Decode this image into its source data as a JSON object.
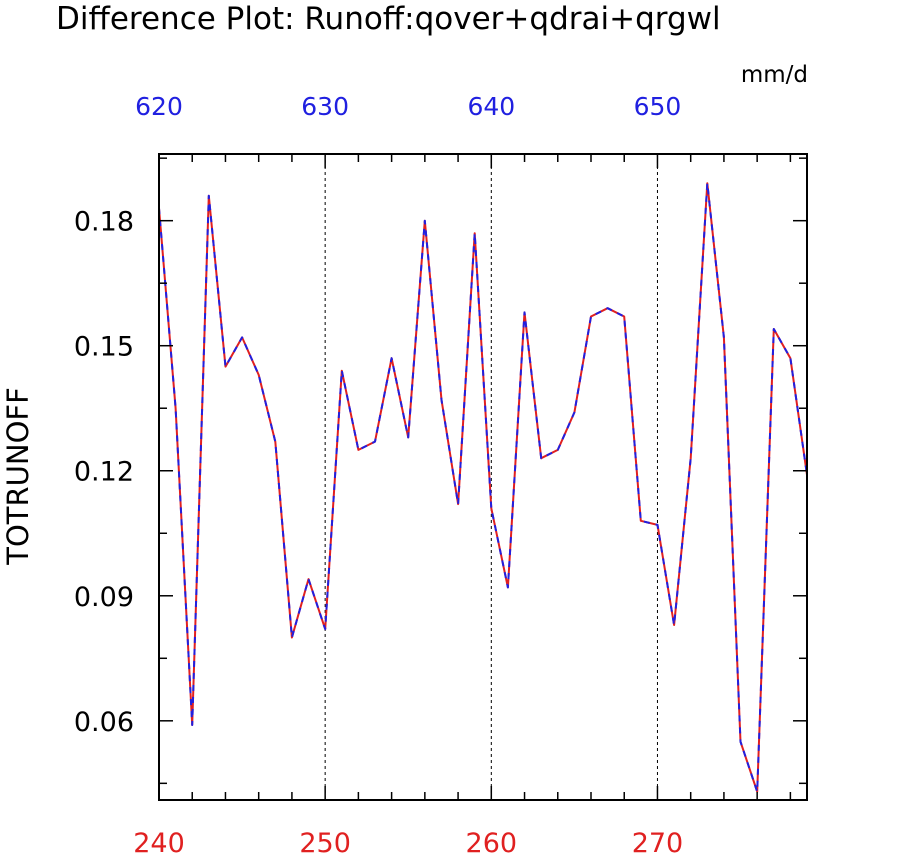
{
  "chart_data": {
    "type": "line",
    "title": "Difference Plot: Runoff:qover+qdrai+qrgwl",
    "units": "mm/d",
    "ylabel": "TOTRUNOFF",
    "xlim": [
      240,
      279
    ],
    "ylim": [
      0.041,
      0.196
    ],
    "bottom_axis": {
      "ticks": [
        240,
        250,
        260,
        270
      ],
      "labels": [
        "240",
        "250",
        "260",
        "270"
      ],
      "color": "#e02020"
    },
    "top_axis": {
      "ticks": [
        240,
        250,
        260,
        270
      ],
      "labels": [
        "620",
        "630",
        "640",
        "650"
      ],
      "color": "#2020e0"
    },
    "y_ticks": [
      0.06,
      0.09,
      0.12,
      0.15,
      0.18
    ],
    "y_tick_labels": [
      "0.06",
      "0.09",
      "0.12",
      "0.15",
      "0.18"
    ],
    "vertical_gridlines_at": [
      250,
      260,
      270
    ],
    "x": [
      240,
      241,
      242,
      243,
      244,
      245,
      246,
      247,
      248,
      249,
      250,
      251,
      252,
      253,
      254,
      255,
      256,
      257,
      258,
      259,
      260,
      261,
      262,
      263,
      264,
      265,
      266,
      267,
      268,
      269,
      270,
      271,
      272,
      273,
      274,
      275,
      276,
      277,
      278,
      279
    ],
    "series": [
      {
        "color": "#e02020",
        "values": [
          0.183,
          0.135,
          0.059,
          0.186,
          0.145,
          0.152,
          0.143,
          0.127,
          0.08,
          0.094,
          0.082,
          0.144,
          0.125,
          0.127,
          0.147,
          0.128,
          0.18,
          0.137,
          0.112,
          0.177,
          0.111,
          0.092,
          0.158,
          0.123,
          0.125,
          0.134,
          0.157,
          0.159,
          0.157,
          0.108,
          0.107,
          0.083,
          0.123,
          0.189,
          0.152,
          0.055,
          0.043,
          0.154,
          0.147,
          0.119
        ]
      },
      {
        "color": "#2020e0",
        "dashed": true,
        "values": [
          0.183,
          0.135,
          0.059,
          0.186,
          0.145,
          0.152,
          0.143,
          0.127,
          0.08,
          0.094,
          0.082,
          0.144,
          0.125,
          0.127,
          0.147,
          0.128,
          0.18,
          0.137,
          0.112,
          0.177,
          0.111,
          0.092,
          0.158,
          0.123,
          0.125,
          0.134,
          0.157,
          0.159,
          0.157,
          0.108,
          0.107,
          0.083,
          0.123,
          0.189,
          0.152,
          0.055,
          0.043,
          0.154,
          0.147,
          0.119
        ]
      }
    ]
  }
}
